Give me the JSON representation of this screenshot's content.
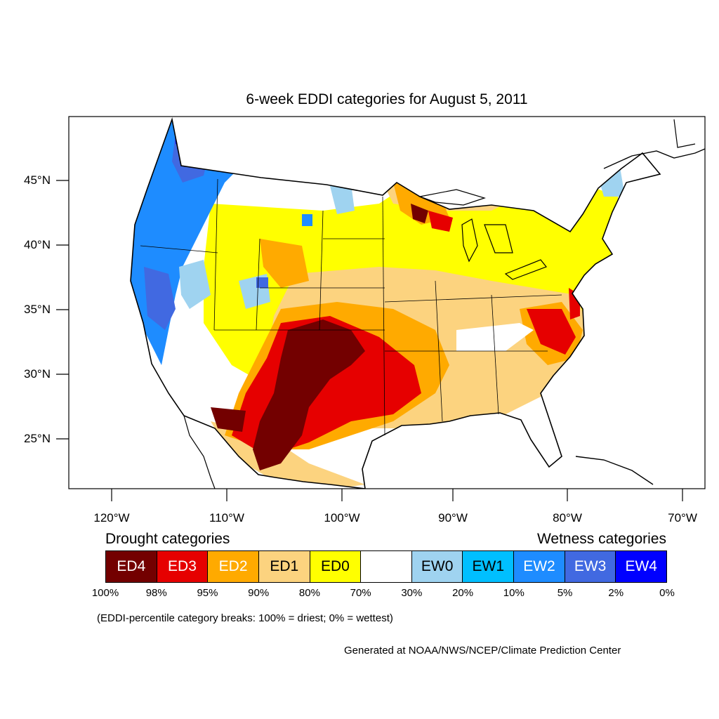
{
  "title": "6-week EDDI categories for August 5, 2011",
  "axes": {
    "lat_ticks": [
      "45°N",
      "40°N",
      "35°N",
      "30°N",
      "25°N"
    ],
    "lon_ticks": [
      "120°W",
      "110°W",
      "100°W",
      "90°W",
      "80°W",
      "70°W"
    ]
  },
  "legend": {
    "drought_heading": "Drought categories",
    "wetness_heading": "Wetness categories",
    "categories": [
      {
        "label": "ED4",
        "color": "#730000",
        "text_color": "#ffffff"
      },
      {
        "label": "ED3",
        "color": "#e60000",
        "text_color": "#ffffff"
      },
      {
        "label": "ED2",
        "color": "#ffaa00",
        "text_color": "#ffffff"
      },
      {
        "label": "ED1",
        "color": "#fcd37f",
        "text_color": "#000000"
      },
      {
        "label": "ED0",
        "color": "#ffff00",
        "text_color": "#000000"
      },
      {
        "label": "",
        "color": "#ffffff",
        "text_color": "#000000"
      },
      {
        "label": "EW0",
        "color": "#9fd3f0",
        "text_color": "#000000"
      },
      {
        "label": "EW1",
        "color": "#00bfff",
        "text_color": "#000000"
      },
      {
        "label": "EW2",
        "color": "#1e8cff",
        "text_color": "#ffffff"
      },
      {
        "label": "EW3",
        "color": "#4169e1",
        "text_color": "#ffffff"
      },
      {
        "label": "EW4",
        "color": "#0000ff",
        "text_color": "#ffffff"
      }
    ],
    "breaks": [
      "100%",
      "98%",
      "95%",
      "90%",
      "80%",
      "70%",
      "30%",
      "20%",
      "10%",
      "5%",
      "2%",
      "0%"
    ]
  },
  "note": "(EDDI-percentile category breaks: 100% = driest; 0% = wettest)",
  "credit": "Generated at NOAA/NWS/NCEP/Climate Prediction Center"
}
